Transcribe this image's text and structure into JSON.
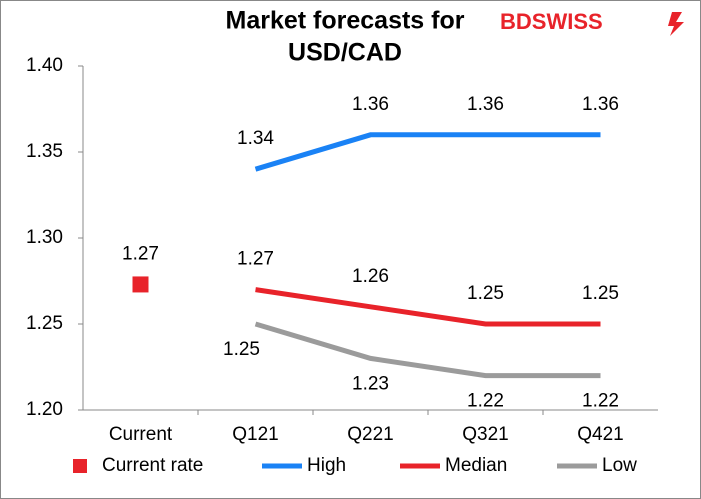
{
  "chart_data": {
    "type": "line",
    "title": [
      "Market forecasts for",
      "USD/CAD"
    ],
    "logo": "BDSWISS",
    "categories": [
      "Current",
      "Q121",
      "Q221",
      "Q321",
      "Q421"
    ],
    "series": [
      {
        "name": "Current rate",
        "color": "#e8232a",
        "marker": "square",
        "values": [
          1.273,
          null,
          null,
          null,
          null
        ],
        "value_labels": [
          "1.27",
          null,
          null,
          null,
          null
        ]
      },
      {
        "name": "High",
        "color": "#1a82f5",
        "values": [
          null,
          1.34,
          1.36,
          1.36,
          1.36
        ]
      },
      {
        "name": "Median",
        "color": "#e8232a",
        "values": [
          null,
          1.27,
          1.26,
          1.25,
          1.25
        ]
      },
      {
        "name": "Low",
        "color": "#9b9b9b",
        "values": [
          null,
          1.25,
          1.23,
          1.22,
          1.22
        ]
      }
    ],
    "ylim": [
      1.2,
      1.4
    ],
    "yticks": [
      {
        "value": 1.2,
        "label": "1.20"
      },
      1.25,
      {
        "value": 1.3,
        "label": "1.30"
      },
      1.35,
      {
        "value": 1.4,
        "label": "1.40"
      }
    ],
    "grid": false,
    "legend": "bottom"
  }
}
